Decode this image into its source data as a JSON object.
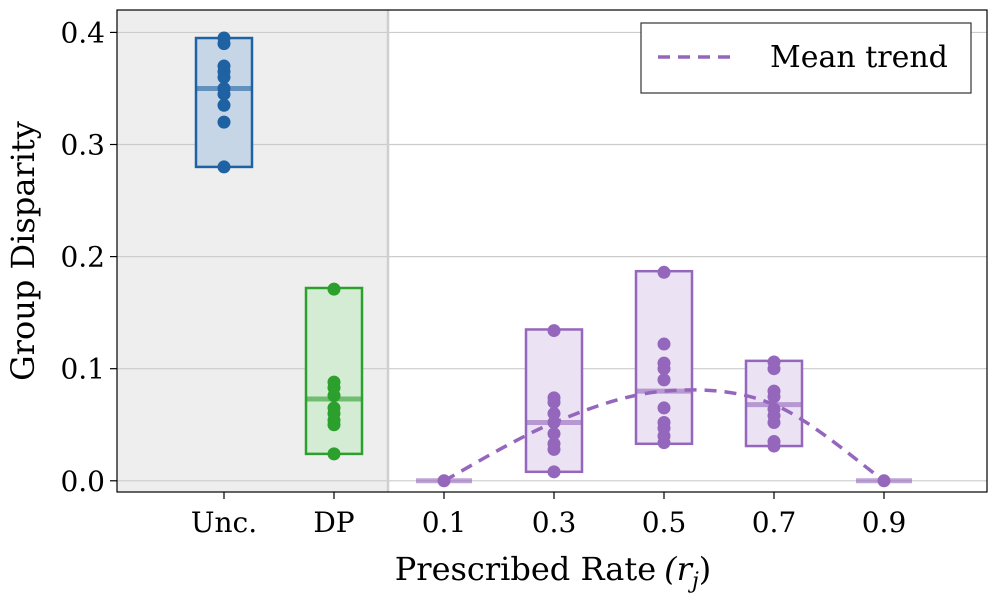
{
  "chart_data": {
    "type": "box-strip",
    "xlabel": "Prescribed Rate",
    "xlabel_math": "(r",
    "xlabel_math_sub": "j",
    "xlabel_math_close": ")",
    "ylabel": "Group Disparity",
    "ylim": [
      -0.01,
      0.42
    ],
    "yticks": [
      0.0,
      0.1,
      0.2,
      0.3,
      0.4
    ],
    "ytick_labels": [
      "0.0",
      "0.1",
      "0.2",
      "0.3",
      "0.4"
    ],
    "grid": true,
    "shaded_region": "Unc. and DP",
    "categories": [
      {
        "label": "Unc.",
        "color": "#1f62a3",
        "fill": "#c6d6e6",
        "lower": 0.28,
        "upper": 0.395,
        "median": 0.35,
        "points": [
          0.395,
          0.39,
          0.37,
          0.365,
          0.36,
          0.35,
          0.345,
          0.335,
          0.32,
          0.28
        ]
      },
      {
        "label": "DP",
        "color": "#2ca02c",
        "fill": "#d4ecd4",
        "lower": 0.024,
        "upper": 0.172,
        "median": 0.073,
        "points": [
          0.171,
          0.088,
          0.083,
          0.076,
          0.065,
          0.06,
          0.054,
          0.05,
          0.024
        ]
      },
      {
        "label": "0.1",
        "color": "#9467bd",
        "fill": "#ebe2f3",
        "lower": 0.0,
        "upper": 0.0,
        "median": 0.0,
        "points": [
          0.0
        ]
      },
      {
        "label": "0.3",
        "color": "#9467bd",
        "fill": "#ebe2f3",
        "lower": 0.008,
        "upper": 0.135,
        "median": 0.052,
        "points": [
          0.134,
          0.074,
          0.07,
          0.06,
          0.052,
          0.042,
          0.033,
          0.028,
          0.008
        ]
      },
      {
        "label": "0.5",
        "color": "#9467bd",
        "fill": "#ebe2f3",
        "lower": 0.033,
        "upper": 0.187,
        "median": 0.08,
        "points": [
          0.186,
          0.122,
          0.105,
          0.1,
          0.09,
          0.065,
          0.052,
          0.047,
          0.04,
          0.034
        ]
      },
      {
        "label": "0.7",
        "color": "#9467bd",
        "fill": "#ebe2f3",
        "lower": 0.031,
        "upper": 0.107,
        "median": 0.068,
        "points": [
          0.106,
          0.1,
          0.08,
          0.075,
          0.064,
          0.058,
          0.052,
          0.035,
          0.031
        ]
      },
      {
        "label": "0.9",
        "color": "#9467bd",
        "fill": "#ebe2f3",
        "lower": 0.0,
        "upper": 0.0,
        "median": 0.0,
        "points": [
          0.0
        ]
      }
    ],
    "trend": {
      "name": "Mean trend",
      "color": "#9467bd",
      "style": "dashed",
      "x": [
        "0.1",
        "0.3",
        "0.5",
        "0.7",
        "0.9"
      ],
      "values": [
        0.0,
        0.052,
        0.08,
        0.068,
        0.0
      ]
    },
    "legend": {
      "position": "top-right",
      "entries": [
        "Mean trend"
      ]
    }
  }
}
